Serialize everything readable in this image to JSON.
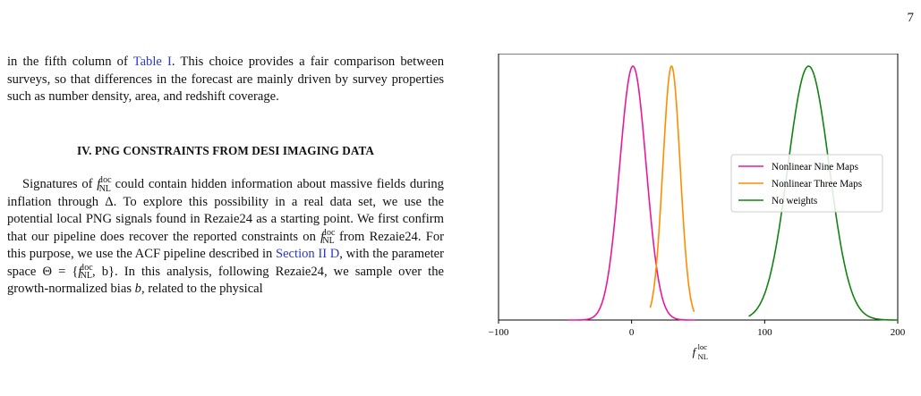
{
  "page": {
    "number": "7"
  },
  "body_text": {
    "para1": {
      "before_link": "in the fifth column of ",
      "link": "Table I",
      "after_link": ". This choice provides a fair comparison between surveys, so that differences in the forecast are mainly driven by survey properties such as number density, area, and redshift coverage."
    },
    "section_heading": "IV.   PNG CONSTRAINTS FROM DESI IMAGING DATA",
    "para2": {
      "s1": "Signatures of ",
      "s2": " could contain hidden information about massive fields during inflation through Δ. To explore this possibility in a real data set, we use the potential local PNG signals found in Rezaie24 as a starting point. We first confirm that our pipeline does recover the reported constraints on ",
      "s3": " from Rezaie24. For this purpose, we use the ACF pipeline described in ",
      "link": "Section II D",
      "s4": ", with the parameter space Θ = {",
      "s5": ", b}. In this analysis, following Rezaie24, we sample over the growth-normalized bias ",
      "s6": "b",
      "s7": ", related to the physical"
    },
    "symbol": {
      "f": "f",
      "sub": "NL",
      "sup": "loc"
    }
  },
  "chart_data": {
    "type": "line",
    "title": "",
    "xlabel": {
      "f": "f",
      "sub": "NL",
      "sup": "loc"
    },
    "ylabel": "",
    "xlim": [
      -100,
      200
    ],
    "xticks": [
      -100,
      0,
      100,
      200
    ],
    "xtick_labels": [
      "−100",
      "0",
      "100",
      "200"
    ],
    "yticks_shown": false,
    "grid": false,
    "legend_position": "center-right",
    "series": [
      {
        "name": "Nonlinear Nine Maps",
        "color": "#e8199b",
        "mean": 1,
        "sigma": 10,
        "x_range": [
          -48,
          48
        ]
      },
      {
        "name": "Nonlinear Three Maps",
        "color": "#ff8c00",
        "mean": 30,
        "sigma": 6.5,
        "x_range": [
          14,
          47
        ]
      },
      {
        "name": "No weights",
        "color": "#128212",
        "mean": 133,
        "sigma": 15.5,
        "x_range": [
          88,
          200
        ]
      }
    ]
  }
}
